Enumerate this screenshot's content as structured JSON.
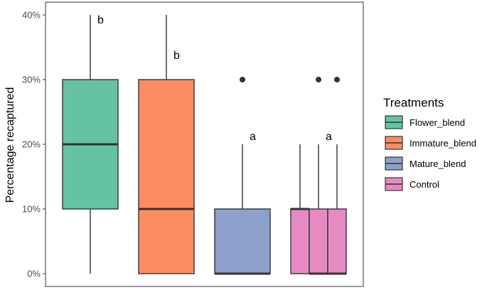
{
  "chart_data": {
    "type": "boxplot",
    "ylabel": "Percentage recaptured",
    "ylim": [
      0,
      41
    ],
    "y_ticks": [
      0,
      10,
      20,
      30,
      40
    ],
    "y_tick_labels": [
      "0%",
      "10%",
      "20%",
      "30%",
      "40%"
    ],
    "grid": false,
    "legend": {
      "title": "Treatments",
      "placement": "right",
      "entries": [
        {
          "label": "Flower_blend",
          "color": "#66c2a5"
        },
        {
          "label": "Immature_blend",
          "color": "#fc8d62"
        },
        {
          "label": "Mature_blend",
          "color": "#8da0cb"
        },
        {
          "label": "Control",
          "color": "#e78ac3"
        }
      ]
    },
    "groups": [
      {
        "color": "#66c2a5",
        "boxes": [
          {
            "min": 0,
            "q1": 10,
            "median": 20,
            "q3": 30,
            "max": 40
          }
        ],
        "outliers": [],
        "significance": "b"
      },
      {
        "color": "#fc8d62",
        "boxes": [
          {
            "min": 0,
            "q1": 0,
            "median": 10,
            "q3": 30,
            "max": 40
          }
        ],
        "outliers": [],
        "significance": "b"
      },
      {
        "color": "#8da0cb",
        "boxes": [
          {
            "min": 0,
            "q1": 0,
            "median": 0,
            "q3": 10,
            "max": 20
          }
        ],
        "outliers": [
          30
        ],
        "significance": "a"
      },
      {
        "color": "#e78ac3",
        "boxes": [
          {
            "min": 0,
            "q1": 0,
            "median": 10,
            "q3": 10,
            "max": 20
          },
          {
            "min": 0,
            "q1": 0,
            "median": 0,
            "q3": 10,
            "max": 20
          },
          {
            "min": 0,
            "q1": 0,
            "median": 0,
            "q3": 10,
            "max": 20
          }
        ],
        "outliers": [
          30,
          30
        ],
        "significance": "a"
      }
    ]
  }
}
